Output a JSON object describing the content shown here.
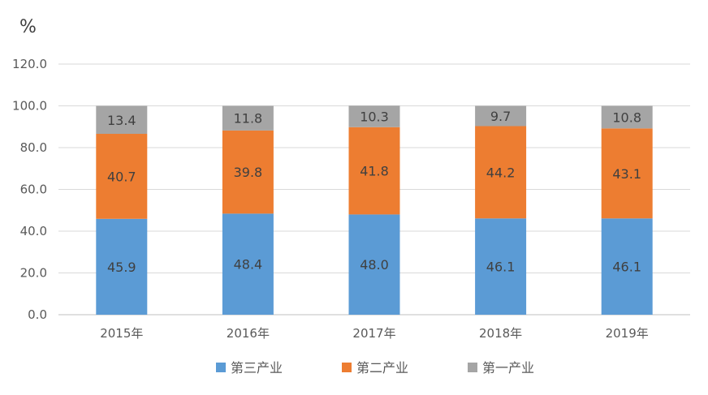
{
  "chart_data": {
    "type": "bar",
    "stacked": true,
    "unit_label": "%",
    "categories": [
      "2015年",
      "2016年",
      "2017年",
      "2018年",
      "2019年"
    ],
    "series": [
      {
        "name": "第三产业",
        "color": "#5B9BD5",
        "values": [
          45.9,
          48.4,
          48.0,
          46.1,
          46.1
        ],
        "labels": [
          "45.9",
          "48.4",
          "48.0",
          "46.1",
          "46.1"
        ]
      },
      {
        "name": "第二产业",
        "color": "#ED7D31",
        "values": [
          40.7,
          39.8,
          41.8,
          44.2,
          43.1
        ],
        "labels": [
          "40.7",
          "39.8",
          "41.8",
          "44.2",
          "43.1"
        ]
      },
      {
        "name": "第一产业",
        "color": "#A5A5A5",
        "values": [
          13.4,
          11.8,
          10.3,
          9.7,
          10.8
        ],
        "labels": [
          "13.4",
          "11.8",
          "10.3",
          "9.7",
          "10.8"
        ]
      }
    ],
    "ylim": [
      0,
      120
    ],
    "yticks": [
      "0.0",
      "20.0",
      "40.0",
      "60.0",
      "80.0",
      "100.0",
      "120.0"
    ],
    "grid": true,
    "legend_position": "bottom"
  }
}
